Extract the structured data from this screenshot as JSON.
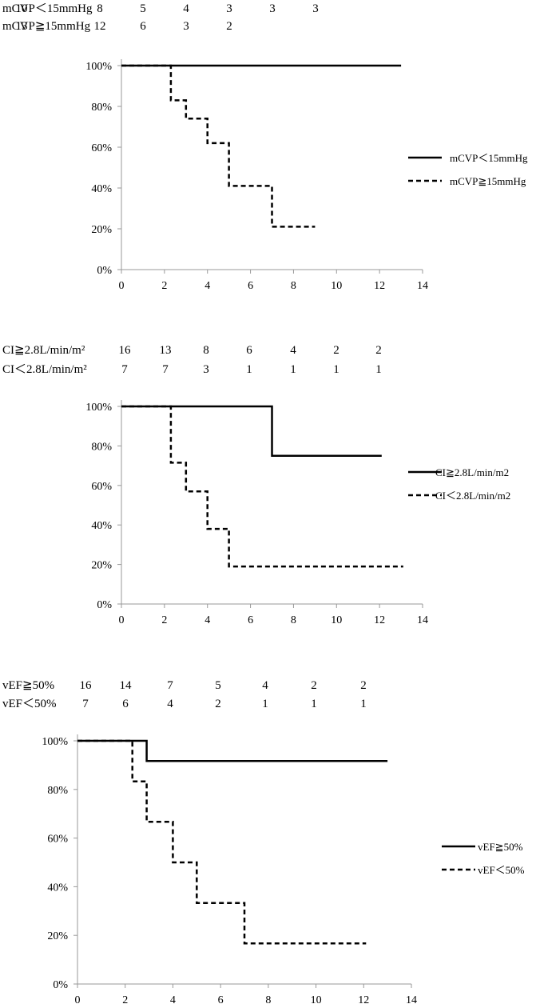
{
  "chart_data": [
    {
      "type": "line",
      "step": true,
      "xlim": [
        0,
        14
      ],
      "ylim": [
        0,
        100
      ],
      "x_ticks": [
        "0",
        "2",
        "4",
        "6",
        "8",
        "10",
        "12",
        "14"
      ],
      "y_ticks": [
        "0%",
        "20%",
        "40%",
        "60%",
        "80%",
        "100%"
      ],
      "legend_position": "right",
      "number_at_risk": [
        {
          "label": "mCVP＜15mmHg",
          "counts": [
            "10",
            "8",
            "5",
            "4",
            "3",
            "3",
            "3"
          ]
        },
        {
          "label": "mCVP≧15mmHg",
          "counts": [
            "13",
            "12",
            "6",
            "3",
            "2"
          ]
        }
      ],
      "series": [
        {
          "name": "mCVP＜15mmHg",
          "style": "solid",
          "points": [
            [
              0,
              100
            ],
            [
              13,
              100
            ]
          ]
        },
        {
          "name": "mCVP≧15mmHg",
          "style": "dashed",
          "points": [
            [
              0,
              100
            ],
            [
              2.3,
              100
            ],
            [
              2.3,
              83
            ],
            [
              3,
              83
            ],
            [
              3,
              74
            ],
            [
              4,
              74
            ],
            [
              4,
              62
            ],
            [
              5,
              62
            ],
            [
              5,
              41
            ],
            [
              7,
              41
            ],
            [
              7,
              21
            ],
            [
              9,
              21
            ]
          ]
        }
      ]
    },
    {
      "type": "line",
      "step": true,
      "xlim": [
        0,
        14
      ],
      "ylim": [
        0,
        100
      ],
      "x_ticks": [
        "0",
        "2",
        "4",
        "6",
        "8",
        "10",
        "12",
        "14"
      ],
      "y_ticks": [
        "0%",
        "20%",
        "40%",
        "60%",
        "80%",
        "100%"
      ],
      "legend_position": "right",
      "number_at_risk": [
        {
          "label": "CI≧2.8L/min/m²",
          "counts": [
            "16",
            "13",
            "8",
            "6",
            "4",
            "2",
            "2"
          ]
        },
        {
          "label": "CI＜2.8L/min/m²",
          "counts": [
            "7",
            "7",
            "3",
            "1",
            "1",
            "1",
            "1"
          ]
        }
      ],
      "series": [
        {
          "name": "CI≧2.8L/min/m2",
          "style": "solid",
          "points": [
            [
              0,
              100
            ],
            [
              7,
              100
            ],
            [
              7,
              75
            ],
            [
              12.1,
              75
            ]
          ]
        },
        {
          "name": "CI＜2.8L/min/m2",
          "style": "dashed",
          "points": [
            [
              0,
              100
            ],
            [
              2.3,
              100
            ],
            [
              2.3,
              71.5
            ],
            [
              3,
              71.5
            ],
            [
              3,
              57
            ],
            [
              4,
              57
            ],
            [
              4,
              38
            ],
            [
              5,
              38
            ],
            [
              5,
              19
            ],
            [
              13.1,
              19
            ]
          ]
        }
      ]
    },
    {
      "type": "line",
      "step": true,
      "xlim": [
        0,
        14
      ],
      "ylim": [
        0,
        100
      ],
      "x_ticks": [
        "0",
        "2",
        "4",
        "6",
        "8",
        "10",
        "12",
        "14"
      ],
      "y_ticks": [
        "0%",
        "20%",
        "40%",
        "60%",
        "80%",
        "100%"
      ],
      "legend_position": "right",
      "number_at_risk": [
        {
          "label": "vEF≧50%",
          "counts": [
            "16",
            "14",
            "7",
            "5",
            "4",
            "2",
            "2"
          ]
        },
        {
          "label": "vEF＜50%",
          "counts": [
            "7",
            "6",
            "4",
            "2",
            "1",
            "1",
            "1"
          ]
        }
      ],
      "series": [
        {
          "name": "vEF≧50%",
          "style": "solid",
          "points": [
            [
              0,
              100
            ],
            [
              2.9,
              100
            ],
            [
              2.9,
              91.7
            ],
            [
              13,
              91.7
            ]
          ]
        },
        {
          "name": "vEF＜50%",
          "style": "dashed",
          "points": [
            [
              0,
              100
            ],
            [
              2.3,
              100
            ],
            [
              2.3,
              83.3
            ],
            [
              2.9,
              83.3
            ],
            [
              2.9,
              66.7
            ],
            [
              4,
              66.7
            ],
            [
              4,
              50
            ],
            [
              5,
              50
            ],
            [
              5,
              33.3
            ],
            [
              7,
              33.3
            ],
            [
              7,
              16.7
            ],
            [
              12.1,
              16.7
            ]
          ]
        }
      ]
    }
  ]
}
